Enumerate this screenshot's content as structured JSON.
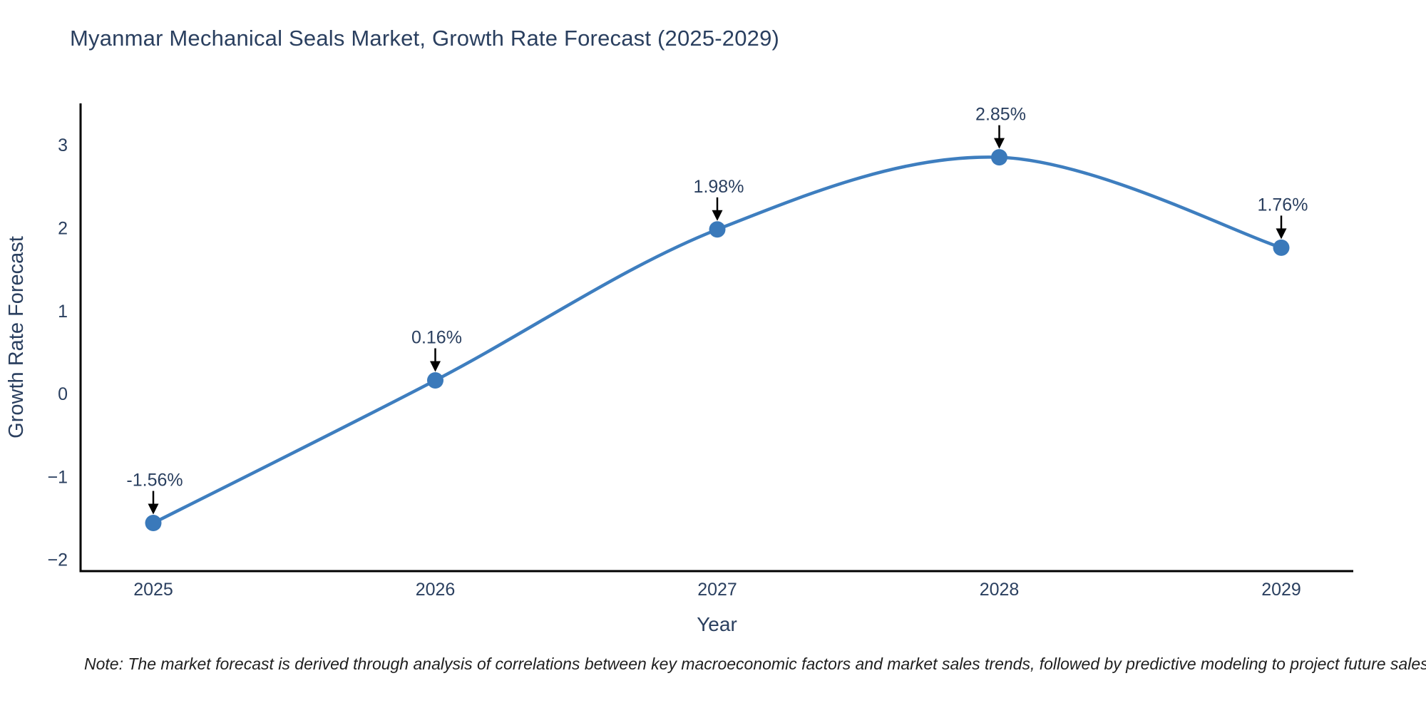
{
  "chart_data": {
    "type": "line",
    "title": "Myanmar Mechanical Seals Market, Growth Rate Forecast (2025-2029)",
    "xlabel": "Year",
    "ylabel": "Growth Rate Forecast",
    "categories": [
      "2025",
      "2026",
      "2027",
      "2028",
      "2029"
    ],
    "series": [
      {
        "name": "Growth Rate Forecast",
        "values": [
          -1.56,
          0.16,
          1.98,
          2.85,
          1.76
        ],
        "point_labels": [
          "-1.56%",
          "0.16%",
          "1.98%",
          "2.85%",
          "1.76%"
        ]
      }
    ],
    "line_shape": "spline",
    "markers": true,
    "grid": false,
    "legend": false,
    "yticks": [
      3,
      2,
      1,
      0,
      -1,
      -2
    ],
    "ytick_labels": [
      "3",
      "2",
      "1",
      "0",
      "−1",
      "−2"
    ],
    "ylim": [
      -2.14,
      3.5
    ],
    "annotation_arrow": "down-to-point",
    "colors": {
      "line": "#3e7ebf",
      "marker": "#3a79ba",
      "arrow": "#000000",
      "axis": "#000000",
      "text": "#2a3f5f"
    },
    "note": "Note: The market forecast is derived through analysis of correlations between key macroeconomic factors and market sales trends, followed by predictive modeling to project future sales"
  }
}
